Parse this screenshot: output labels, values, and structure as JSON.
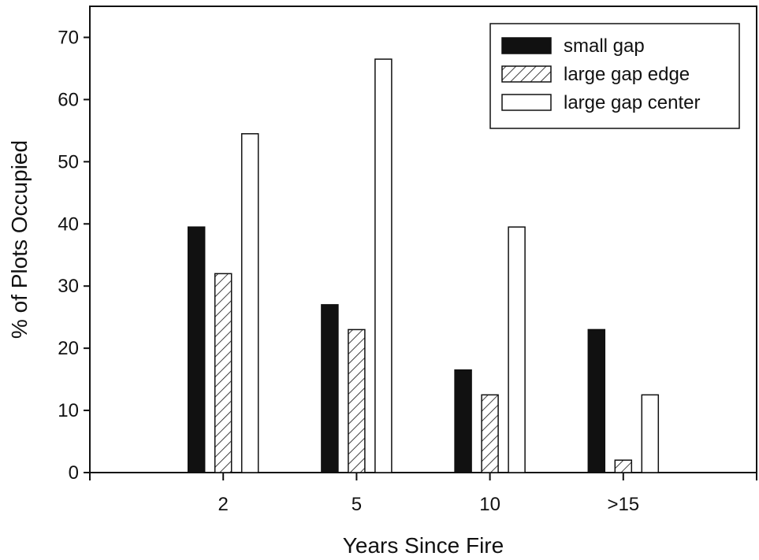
{
  "chart_data": {
    "type": "bar",
    "title": "",
    "xlabel": "Years Since Fire",
    "ylabel": "% of Plots Occupied",
    "categories": [
      "2",
      "5",
      "10",
      ">15"
    ],
    "ylim": [
      0,
      75
    ],
    "yticks": [
      0,
      10,
      20,
      30,
      40,
      50,
      60,
      70
    ],
    "grid": false,
    "legend_position": "top-right",
    "series": [
      {
        "name": "small gap",
        "values": [
          39.5,
          27,
          16.5,
          23
        ],
        "fill": "solid",
        "color": "#111111"
      },
      {
        "name": "large gap edge",
        "values": [
          32,
          23,
          12.5,
          2
        ],
        "fill": "hatched",
        "color": "#111111"
      },
      {
        "name": "large gap center",
        "values": [
          54.5,
          66.5,
          39.5,
          12.5
        ],
        "fill": "open",
        "color": "#ffffff"
      }
    ]
  }
}
